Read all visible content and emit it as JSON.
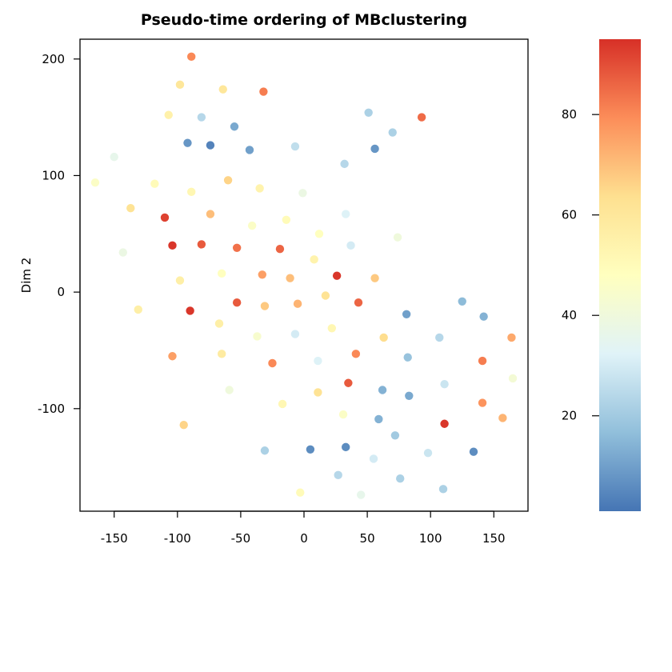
{
  "chart_data": {
    "type": "scatter",
    "title": "Pseudo-time ordering of MBclustering",
    "xlabel": "",
    "ylabel": "Dim 2",
    "xlim": [
      -177,
      177
    ],
    "ylim": [
      -188,
      217
    ],
    "xticks": [
      -150,
      -100,
      -50,
      0,
      50,
      100,
      150
    ],
    "yticks": [
      -100,
      0,
      100,
      200
    ],
    "grid": false,
    "colorbar": {
      "range": [
        1,
        95
      ],
      "ticks": [
        20,
        40,
        60,
        80
      ],
      "colors": [
        "#4575b4",
        "#91bfdb",
        "#e0f3f8",
        "#ffffbf",
        "#fee090",
        "#fc8d59",
        "#d73027"
      ]
    },
    "points": [
      {
        "x": -89,
        "y": 202,
        "t": 80
      },
      {
        "x": -98,
        "y": 178,
        "t": 60
      },
      {
        "x": -64,
        "y": 174,
        "t": 60
      },
      {
        "x": -32,
        "y": 172,
        "t": 82
      },
      {
        "x": -107,
        "y": 152,
        "t": 55
      },
      {
        "x": -81,
        "y": 150,
        "t": 24
      },
      {
        "x": -55,
        "y": 142,
        "t": 12
      },
      {
        "x": -92,
        "y": 128,
        "t": 8
      },
      {
        "x": -74,
        "y": 126,
        "t": 4
      },
      {
        "x": -43,
        "y": 122,
        "t": 10
      },
      {
        "x": -7,
        "y": 125,
        "t": 26
      },
      {
        "x": 51,
        "y": 154,
        "t": 22
      },
      {
        "x": 70,
        "y": 137,
        "t": 22
      },
      {
        "x": 93,
        "y": 150,
        "t": 85
      },
      {
        "x": 56,
        "y": 123,
        "t": 8
      },
      {
        "x": 32,
        "y": 110,
        "t": 24
      },
      {
        "x": -150,
        "y": 116,
        "t": 36
      },
      {
        "x": -165,
        "y": 94,
        "t": 46
      },
      {
        "x": -118,
        "y": 93,
        "t": 50
      },
      {
        "x": -89,
        "y": 86,
        "t": 52
      },
      {
        "x": -60,
        "y": 96,
        "t": 66
      },
      {
        "x": -35,
        "y": 89,
        "t": 54
      },
      {
        "x": -1,
        "y": 85,
        "t": 38
      },
      {
        "x": -137,
        "y": 72,
        "t": 62
      },
      {
        "x": -110,
        "y": 64,
        "t": 92
      },
      {
        "x": -74,
        "y": 67,
        "t": 70
      },
      {
        "x": -14,
        "y": 62,
        "t": 50
      },
      {
        "x": 33,
        "y": 67,
        "t": 32
      },
      {
        "x": -41,
        "y": 57,
        "t": 46
      },
      {
        "x": 12,
        "y": 50,
        "t": 48
      },
      {
        "x": -143,
        "y": 34,
        "t": 38
      },
      {
        "x": -104,
        "y": 40,
        "t": 94
      },
      {
        "x": -81,
        "y": 41,
        "t": 88
      },
      {
        "x": -53,
        "y": 38,
        "t": 84
      },
      {
        "x": -19,
        "y": 37,
        "t": 86
      },
      {
        "x": 37,
        "y": 40,
        "t": 30
      },
      {
        "x": 74,
        "y": 47,
        "t": 40
      },
      {
        "x": 8,
        "y": 28,
        "t": 54
      },
      {
        "x": -98,
        "y": 10,
        "t": 56
      },
      {
        "x": -65,
        "y": 16,
        "t": 48
      },
      {
        "x": -33,
        "y": 15,
        "t": 76
      },
      {
        "x": -11,
        "y": 12,
        "t": 70
      },
      {
        "x": 26,
        "y": 14,
        "t": 94
      },
      {
        "x": 56,
        "y": 12,
        "t": 68
      },
      {
        "x": -131,
        "y": -15,
        "t": 56
      },
      {
        "x": -90,
        "y": -16,
        "t": 94
      },
      {
        "x": -53,
        "y": -9,
        "t": 88
      },
      {
        "x": -31,
        "y": -12,
        "t": 68
      },
      {
        "x": -5,
        "y": -10,
        "t": 72
      },
      {
        "x": 17,
        "y": -3,
        "t": 62
      },
      {
        "x": 43,
        "y": -9,
        "t": 86
      },
      {
        "x": 81,
        "y": -19,
        "t": 10
      },
      {
        "x": 125,
        "y": -8,
        "t": 16
      },
      {
        "x": 142,
        "y": -21,
        "t": 14
      },
      {
        "x": -67,
        "y": -27,
        "t": 56
      },
      {
        "x": -37,
        "y": -38,
        "t": 44
      },
      {
        "x": -7,
        "y": -36,
        "t": 30
      },
      {
        "x": 22,
        "y": -31,
        "t": 52
      },
      {
        "x": 63,
        "y": -39,
        "t": 64
      },
      {
        "x": 107,
        "y": -39,
        "t": 24
      },
      {
        "x": 164,
        "y": -39,
        "t": 74
      },
      {
        "x": -104,
        "y": -55,
        "t": 76
      },
      {
        "x": -65,
        "y": -53,
        "t": 58
      },
      {
        "x": -25,
        "y": -61,
        "t": 80
      },
      {
        "x": 11,
        "y": -59,
        "t": 32
      },
      {
        "x": 41,
        "y": -53,
        "t": 80
      },
      {
        "x": 82,
        "y": -56,
        "t": 18
      },
      {
        "x": 141,
        "y": -59,
        "t": 82
      },
      {
        "x": -59,
        "y": -84,
        "t": 40
      },
      {
        "x": 11,
        "y": -86,
        "t": 62
      },
      {
        "x": 35,
        "y": -78,
        "t": 88
      },
      {
        "x": 62,
        "y": -84,
        "t": 14
      },
      {
        "x": 83,
        "y": -89,
        "t": 12
      },
      {
        "x": 111,
        "y": -79,
        "t": 28
      },
      {
        "x": 165,
        "y": -74,
        "t": 42
      },
      {
        "x": -17,
        "y": -96,
        "t": 52
      },
      {
        "x": 31,
        "y": -105,
        "t": 46
      },
      {
        "x": 141,
        "y": -95,
        "t": 78
      },
      {
        "x": 157,
        "y": -108,
        "t": 72
      },
      {
        "x": -95,
        "y": -114,
        "t": 66
      },
      {
        "x": 59,
        "y": -109,
        "t": 14
      },
      {
        "x": 111,
        "y": -113,
        "t": 94
      },
      {
        "x": 72,
        "y": -123,
        "t": 20
      },
      {
        "x": -31,
        "y": -136,
        "t": 22
      },
      {
        "x": 5,
        "y": -135,
        "t": 6
      },
      {
        "x": 33,
        "y": -133,
        "t": 6
      },
      {
        "x": 55,
        "y": -143,
        "t": 30
      },
      {
        "x": 98,
        "y": -138,
        "t": 28
      },
      {
        "x": 134,
        "y": -137,
        "t": 6
      },
      {
        "x": 27,
        "y": -157,
        "t": 24
      },
      {
        "x": 76,
        "y": -160,
        "t": 22
      },
      {
        "x": 110,
        "y": -169,
        "t": 22
      },
      {
        "x": -3,
        "y": -172,
        "t": 50
      },
      {
        "x": 45,
        "y": -174,
        "t": 36
      }
    ]
  }
}
